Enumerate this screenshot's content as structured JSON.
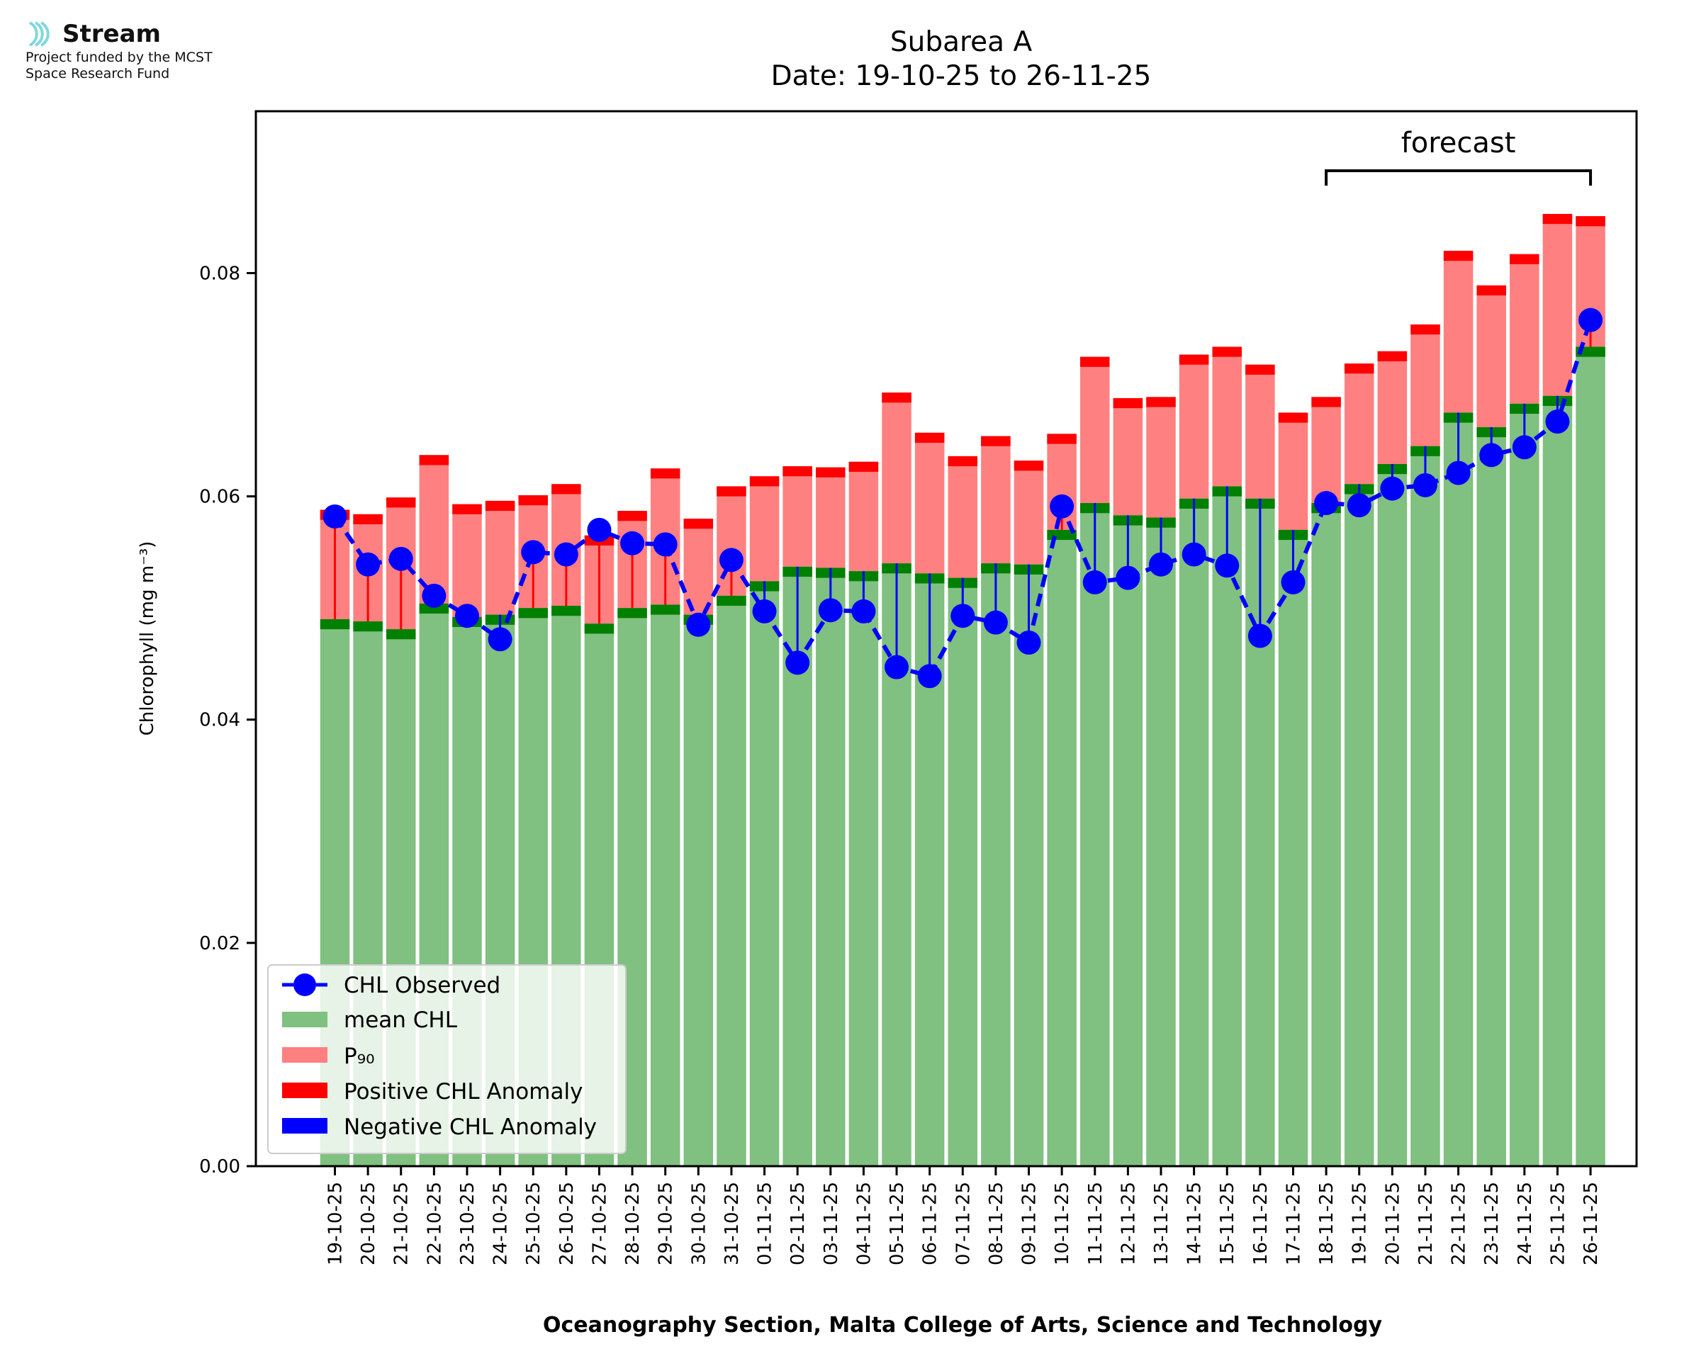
{
  "logo": {
    "name": "Stream",
    "funded_line1": "Project funded by the MCST",
    "funded_line2": "Space Research Fund",
    "icon": "stream-waves-icon",
    "color": "#7fd8dc"
  },
  "chart_data": {
    "type": "bar",
    "title": "Subarea A",
    "subtitle": "Date: 19-10-25 to 26-11-25",
    "xlabel": "Oceanography Section, Malta College of Arts, Science and Technology",
    "ylabel": "Chlorophyll (mg m⁻³)",
    "ylim": [
      0,
      0.0945
    ],
    "yticks": [
      "0.00",
      "0.02",
      "0.04",
      "0.06",
      "0.08"
    ],
    "ytick_values": [
      0,
      0.02,
      0.04,
      0.06,
      0.08
    ],
    "grid": false,
    "legend_position": "lower-left",
    "annotation": {
      "text": "forecast",
      "from": "18-11-25",
      "to": "26-11-25"
    },
    "categories": [
      "19-10-25",
      "20-10-25",
      "21-10-25",
      "22-10-25",
      "23-10-25",
      "24-10-25",
      "25-10-25",
      "26-10-25",
      "27-10-25",
      "28-10-25",
      "29-10-25",
      "30-10-25",
      "31-10-25",
      "01-11-25",
      "02-11-25",
      "03-11-25",
      "04-11-25",
      "05-11-25",
      "06-11-25",
      "07-11-25",
      "08-11-25",
      "09-11-25",
      "10-11-25",
      "11-11-25",
      "12-11-25",
      "13-11-25",
      "14-11-25",
      "15-11-25",
      "16-11-25",
      "17-11-25",
      "18-11-25",
      "19-11-25",
      "20-11-25",
      "21-11-25",
      "22-11-25",
      "23-11-25",
      "24-11-25",
      "25-11-25",
      "26-11-25"
    ],
    "series": [
      {
        "name": "CHL Observed",
        "color": "#0000ff",
        "values": [
          0.0582,
          0.0539,
          0.0544,
          0.0511,
          0.0493,
          0.0472,
          0.055,
          0.0548,
          0.057,
          0.0558,
          0.0557,
          0.0485,
          0.0543,
          0.0497,
          0.0451,
          0.0498,
          0.0497,
          0.0447,
          0.0439,
          0.0493,
          0.0487,
          0.0469,
          0.0591,
          0.0523,
          0.0527,
          0.0539,
          0.0548,
          0.0538,
          0.0475,
          0.0523,
          0.0594,
          0.0592,
          0.0607,
          0.061,
          0.0621,
          0.0637,
          0.0644,
          0.0667,
          0.0758
        ]
      },
      {
        "name": "mean CHL",
        "color": "#80c080",
        "values": [
          0.049,
          0.0488,
          0.0481,
          0.0504,
          0.0492,
          0.0494,
          0.05,
          0.0502,
          0.0486,
          0.05,
          0.0503,
          0.0494,
          0.0511,
          0.0524,
          0.0537,
          0.0536,
          0.0533,
          0.054,
          0.0531,
          0.0527,
          0.054,
          0.0539,
          0.057,
          0.0594,
          0.0583,
          0.0581,
          0.0598,
          0.0609,
          0.0598,
          0.057,
          0.0594,
          0.0611,
          0.0629,
          0.0645,
          0.0675,
          0.0662,
          0.0683,
          0.069,
          0.0734
        ]
      },
      {
        "name": "P₉₀",
        "color": "#ff8080",
        "values": [
          0.0588,
          0.0584,
          0.0599,
          0.0637,
          0.0593,
          0.0596,
          0.0601,
          0.0611,
          0.0565,
          0.0587,
          0.0625,
          0.058,
          0.0609,
          0.0618,
          0.0627,
          0.0626,
          0.0631,
          0.0693,
          0.0657,
          0.0636,
          0.0654,
          0.0632,
          0.0656,
          0.0725,
          0.0688,
          0.0689,
          0.0727,
          0.0734,
          0.0718,
          0.0675,
          0.0689,
          0.0719,
          0.073,
          0.0754,
          0.082,
          0.0789,
          0.0817,
          0.0853,
          0.0851
        ]
      },
      {
        "name": "Positive CHL Anomaly",
        "color": "#ff0000"
      },
      {
        "name": "Negative CHL Anomaly",
        "color": "#0000ff"
      }
    ],
    "colors": {
      "mean_cap": "#008000",
      "p90_cap": "#ff0000",
      "observed": "#0000ff"
    }
  }
}
